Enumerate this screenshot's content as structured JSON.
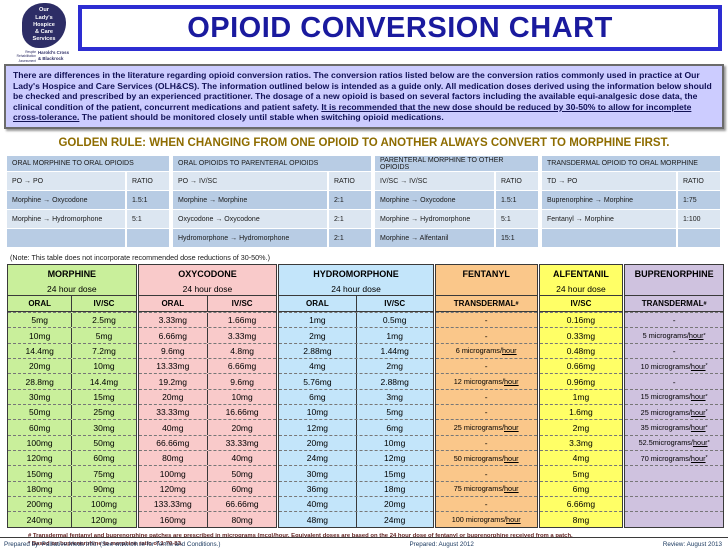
{
  "header": {
    "logo": {
      "name": "Our\nLady's\nHospice\n& Care\nServices",
      "services": "Respite\nRehabilitation\nAssessment",
      "location": "Harold's Cross\n& Blackrock"
    },
    "title": "OPIOID CONVERSION CHART"
  },
  "disclaimer": {
    "pre": "There are differences in the literature regarding opioid conversion ratios. The conversion ratios listed below are the conversion ratios commonly used in practice at Our Lady's Hospice and Care Services (OLH&CS). The information outlined below is intended as a guide only. All medication doses derived using the information below should be checked and prescribed by an experienced practitioner. The dosage of a new opioid is based on several factors including the available equi-analgesic dose data, the clinical condition of the patient, concurrent medications and patient safety. ",
    "underlined": "It is recommended that the new dose should be reduced by 30-50% to allow for incomplete cross-tolerance.",
    "post": " The patient should be monitored closely until stable when switching opioid medications."
  },
  "golden_rule": "GOLDEN RULE: WHEN CHANGING FROM ONE OPIOID TO ANOTHER ALWAYS CONVERT TO MORPHINE FIRST.",
  "ratio_tables": [
    {
      "title": "ORAL MORPHINE TO ORAL OPIOIDS",
      "route": "PO → PO",
      "ratio_label": "RATIO",
      "rows": [
        {
          "label": "Morphine → Oxycodone",
          "ratio": "1.5:1"
        },
        {
          "label": "Morphine → Hydromorphone",
          "ratio": "5:1"
        },
        {
          "label": "",
          "ratio": ""
        }
      ]
    },
    {
      "title": "ORAL OPIOIDS TO PARENTERAL OPIOIDS",
      "route": "PO → IV/SC",
      "ratio_label": "RATIO",
      "rows": [
        {
          "label": "Morphine → Morphine",
          "ratio": "2:1"
        },
        {
          "label": "Oxycodone → Oxycodone",
          "ratio": "2:1"
        },
        {
          "label": "Hydromorphone → Hydromorphone",
          "ratio": "2:1"
        }
      ]
    },
    {
      "title": "PARENTERAL MORPHINE TO OTHER OPIOIDS",
      "route": "IV/SC → IV/SC",
      "ratio_label": "RATIO",
      "rows": [
        {
          "label": "Morphine → Oxycodone",
          "ratio": "1.5:1"
        },
        {
          "label": "Morphine → Hydromorphone",
          "ratio": "5:1"
        },
        {
          "label": "Morphine → Alfentanil",
          "ratio": "15:1"
        }
      ]
    },
    {
      "title": "TRANSDERMAL OPIOID TO ORAL MORPHINE",
      "route": "TD → PO",
      "ratio_label": "RATIO",
      "rows": [
        {
          "label": "Buprenorphine → Morphine",
          "ratio": "1:75"
        },
        {
          "label": "Fentanyl → Morphine",
          "ratio": "1:100"
        },
        {
          "label": "",
          "ratio": ""
        }
      ]
    }
  ],
  "note": "(Note: This table does not incorporate recommended dose reductions of 30-50%.)",
  "conversion_table": {
    "groups": [
      {
        "name": "MORPHINE",
        "subtitle": "24 hour dose",
        "columns": [
          "ORAL",
          "IV/SC"
        ],
        "color": "#c9ef9b"
      },
      {
        "name": "OXYCODONE",
        "subtitle": "24 hour dose",
        "columns": [
          "ORAL",
          "IV/SC"
        ],
        "color": "#f9caca"
      },
      {
        "name": "HYDROMORPHONE",
        "subtitle": "24 hour dose",
        "columns": [
          "ORAL",
          "IV/SC"
        ],
        "color": "#c3e5fa"
      },
      {
        "name": "FENTANYL",
        "subtitle": "",
        "columns": [
          "TRANSDERMAL#"
        ],
        "color": "#fac78a"
      },
      {
        "name": "ALFENTANIL",
        "subtitle": "24 hour dose",
        "columns": [
          "IV/SC"
        ],
        "color": "#ffff66"
      },
      {
        "name": "BUPRENORPHINE",
        "subtitle": "",
        "columns": [
          "TRANSDERMAL#"
        ],
        "color": "#cfc2df"
      }
    ],
    "rows": [
      [
        "5mg",
        "2.5mg",
        "3.33mg",
        "1.66mg",
        "1mg",
        "0.5mg",
        "-",
        "0.16mg",
        "-"
      ],
      [
        "10mg",
        "5mg",
        "6.66mg",
        "3.33mg",
        "2mg",
        "1mg",
        "-",
        "0.33mg",
        "5 micrograms/hour*"
      ],
      [
        "14.4mg",
        "7.2mg",
        "9.6mg",
        "4.8mg",
        "2.88mg",
        "1.44mg",
        "6 micrograms/hour",
        "0.48mg",
        "-"
      ],
      [
        "20mg",
        "10mg",
        "13.33mg",
        "6.66mg",
        "4mg",
        "2mg",
        "-",
        "0.66mg",
        "10 micrograms/hour*"
      ],
      [
        "28.8mg",
        "14.4mg",
        "19.2mg",
        "9.6mg",
        "5.76mg",
        "2.88mg",
        "12 micrograms/hour",
        "0.96mg",
        "-"
      ],
      [
        "30mg",
        "15mg",
        "20mg",
        "10mg",
        "6mg",
        "3mg",
        "-",
        "1mg",
        "15 micrograms/hour*"
      ],
      [
        "50mg",
        "25mg",
        "33.33mg",
        "16.66mg",
        "10mg",
        "5mg",
        "-",
        "1.6mg",
        "25 micrograms/hour*"
      ],
      [
        "60mg",
        "30mg",
        "40mg",
        "20mg",
        "12mg",
        "6mg",
        "25 micrograms/hour",
        "2mg",
        "35 micrograms/hour*"
      ],
      [
        "100mg",
        "50mg",
        "66.66mg",
        "33.33mg",
        "20mg",
        "10mg",
        "-",
        "3.3mg",
        "52.5micrograms/hour*"
      ],
      [
        "120mg",
        "60mg",
        "80mg",
        "40mg",
        "24mg",
        "12mg",
        "50 micrograms/hour",
        "4mg",
        "70 micrograms/hour*"
      ],
      [
        "150mg",
        "75mg",
        "100mg",
        "50mg",
        "30mg",
        "15mg",
        "-",
        "5mg",
        ""
      ],
      [
        "180mg",
        "90mg",
        "120mg",
        "60mg",
        "36mg",
        "18mg",
        "75 micrograms/hour",
        "6mg",
        ""
      ],
      [
        "200mg",
        "100mg",
        "133.33mg",
        "66.66mg",
        "40mg",
        "20mg",
        "-",
        "6.66mg",
        ""
      ],
      [
        "240mg",
        "120mg",
        "160mg",
        "80mg",
        "48mg",
        "24mg",
        "100 micrograms/hour",
        "8mg",
        ""
      ]
    ]
  },
  "footnotes": [
    "# Transdermal fentanyl and buprenorphine patches are prescribed in micrograms (mcg)/hour. Equivalent doses are based on the 24 hour dose of fentanyl or buprenorphine received from a patch.",
    "* Based on buprenorphine to morphine ratio of 1:70-83."
  ],
  "footer": {
    "left": "Prepared by: Palliative Meds Info. (See www.olh.ie for Terms and Conditions.)",
    "center": "Prepared: August 2012",
    "right": "Review: August 2013"
  },
  "colors": {
    "title_blue": "#1a1a9e",
    "border_blue": "#2d2dd2",
    "disclaimer_bg": "#ccccff",
    "golden_rule": "#8e6c00",
    "ratio_header_blue": "#b8cce4",
    "ratio_alt_blue": "#dce6f1",
    "footnote_maroon": "#632423"
  }
}
